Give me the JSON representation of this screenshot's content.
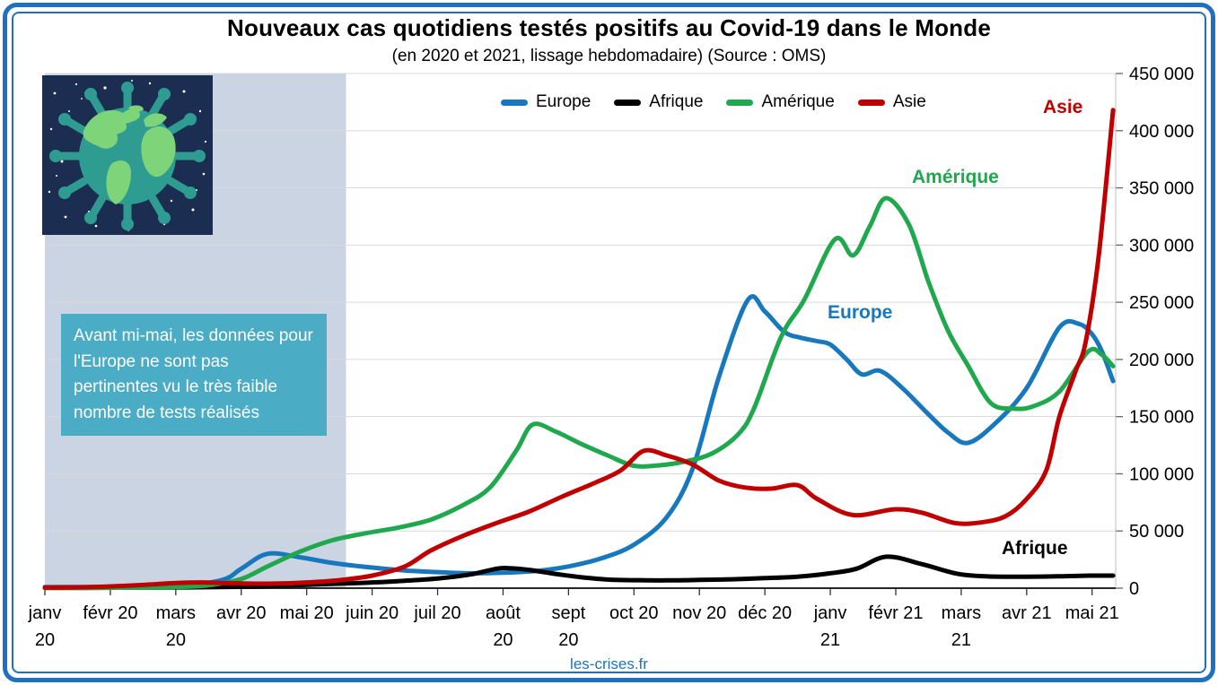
{
  "page": {
    "background": "#ffffff",
    "frame_color": "#2170c0"
  },
  "header": {
    "title": "Nouveaux cas quotidiens testés positifs au Covid-19 dans le Monde",
    "subtitle": "(en 2020 et 2021, lissage hebdomadaire) (Source : OMS)"
  },
  "annotation": {
    "text": "Avant mi-mai, les données pour l'Europe ne sont pas pertinentes vu le très faible nombre de tests réalisés",
    "bg_color": "#4bacc6",
    "text_color": "#ffffff"
  },
  "footer": {
    "site_label": "les-crises.fr",
    "color": "#1e73b5"
  },
  "icons": {
    "virus_globe": "virus-globe-illustration"
  },
  "chart_data": {
    "type": "line",
    "title": "Nouveaux cas quotidiens testés positifs au Covid-19 dans le Monde",
    "subtitle": "(en 2020 et 2021, lissage hebdomadaire)",
    "source": "OMS",
    "grid": true,
    "legend_position": "top-center",
    "x_axis": {
      "unit": "mois (0 = janvier 2020)",
      "x_max_month": 16.36,
      "labels": [
        {
          "l1": "janv",
          "l2": "20"
        },
        {
          "l1": "févr 20"
        },
        {
          "l1": "mars",
          "l2": "20"
        },
        {
          "l1": "avr 20"
        },
        {
          "l1": "mai 20"
        },
        {
          "l1": "juin 20"
        },
        {
          "l1": "juil 20"
        },
        {
          "l1": "août",
          "l2": "20"
        },
        {
          "l1": "sept",
          "l2": "20"
        },
        {
          "l1": "oct 20"
        },
        {
          "l1": "nov 20"
        },
        {
          "l1": "déc 20"
        },
        {
          "l1": "janv",
          "l2": "21"
        },
        {
          "l1": "févr 21"
        },
        {
          "l1": "mars",
          "l2": "21"
        },
        {
          "l1": "avr 21"
        },
        {
          "l1": "mai 21"
        }
      ]
    },
    "y_axis": {
      "min": 0,
      "max": 450000,
      "step": 50000,
      "side": "right",
      "tick_labels": [
        "0",
        "50 000",
        "100 000",
        "150 000",
        "200 000",
        "250 000",
        "300 000",
        "350 000",
        "400 000",
        "450 000"
      ]
    },
    "shaded_region": {
      "from_month": 0,
      "to_month": 4.6,
      "color": "#cbd4e2",
      "meaning": "période avant mi-mai 2020 (données Europe non pertinentes)"
    },
    "series": [
      {
        "name": "Europe",
        "color": "#1878be",
        "points": [
          [
            0,
            1000
          ],
          [
            1,
            1000
          ],
          [
            2,
            2000
          ],
          [
            2.7,
            7000
          ],
          [
            3.0,
            17000
          ],
          [
            3.4,
            30000
          ],
          [
            3.9,
            27000
          ],
          [
            4.4,
            22000
          ],
          [
            5,
            18000
          ],
          [
            5.5,
            15500
          ],
          [
            6,
            14000
          ],
          [
            6.5,
            13000
          ],
          [
            7,
            13500
          ],
          [
            7.5,
            15000
          ],
          [
            8,
            19000
          ],
          [
            8.5,
            26000
          ],
          [
            9,
            38000
          ],
          [
            9.5,
            62000
          ],
          [
            9.9,
            105000
          ],
          [
            10.3,
            185000
          ],
          [
            10.74,
            252000
          ],
          [
            11.0,
            242000
          ],
          [
            11.3,
            224000
          ],
          [
            11.55,
            219000
          ],
          [
            11.8,
            216000
          ],
          [
            12.0,
            213000
          ],
          [
            12.25,
            200000
          ],
          [
            12.48,
            187000
          ],
          [
            12.76,
            190000
          ],
          [
            13.1,
            175000
          ],
          [
            13.5,
            152000
          ],
          [
            13.8,
            136000
          ],
          [
            14.1,
            127000
          ],
          [
            14.5,
            143000
          ],
          [
            15,
            175000
          ],
          [
            15.5,
            228000
          ],
          [
            15.8,
            231000
          ],
          [
            16.0,
            222000
          ],
          [
            16.15,
            207000
          ],
          [
            16.32,
            181000
          ]
        ]
      },
      {
        "name": "Afrique",
        "color": "#000000",
        "points": [
          [
            0,
            300
          ],
          [
            1,
            400
          ],
          [
            2,
            600
          ],
          [
            3,
            1200
          ],
          [
            3.5,
            2000
          ],
          [
            4,
            3000
          ],
          [
            4.5,
            4000
          ],
          [
            5,
            5000
          ],
          [
            5.5,
            6500
          ],
          [
            6,
            8500
          ],
          [
            6.5,
            12000
          ],
          [
            6.9,
            17000
          ],
          [
            7.1,
            17500
          ],
          [
            7.4,
            16000
          ],
          [
            7.8,
            12500
          ],
          [
            8.2,
            9500
          ],
          [
            8.6,
            7500
          ],
          [
            9,
            7000
          ],
          [
            9.5,
            6800
          ],
          [
            10,
            7200
          ],
          [
            10.5,
            7800
          ],
          [
            11,
            8800
          ],
          [
            11.5,
            10000
          ],
          [
            12,
            13000
          ],
          [
            12.4,
            17000
          ],
          [
            12.86,
            27500
          ],
          [
            13.4,
            21000
          ],
          [
            13.95,
            12500
          ],
          [
            14.4,
            10300
          ],
          [
            15,
            10000
          ],
          [
            15.6,
            10500
          ],
          [
            16,
            11000
          ],
          [
            16.32,
            11000
          ]
        ]
      },
      {
        "name": "Amérique",
        "color": "#1fa84e",
        "points": [
          [
            0,
            200
          ],
          [
            1,
            300
          ],
          [
            2,
            1000
          ],
          [
            2.5,
            2500
          ],
          [
            3,
            8000
          ],
          [
            3.4,
            19000
          ],
          [
            3.9,
            32000
          ],
          [
            4.4,
            42000
          ],
          [
            4.9,
            48000
          ],
          [
            5.4,
            53000
          ],
          [
            5.9,
            60000
          ],
          [
            6.4,
            73000
          ],
          [
            6.8,
            88000
          ],
          [
            7.2,
            120000
          ],
          [
            7.45,
            143000
          ],
          [
            7.8,
            137000
          ],
          [
            8.2,
            126000
          ],
          [
            8.6,
            116000
          ],
          [
            9.0,
            107000
          ],
          [
            9.4,
            107500
          ],
          [
            9.8,
            111000
          ],
          [
            10.2,
            118000
          ],
          [
            10.6,
            135000
          ],
          [
            10.84,
            158000
          ],
          [
            11.25,
            220000
          ],
          [
            11.6,
            252000
          ],
          [
            12.07,
            305000
          ],
          [
            12.35,
            291000
          ],
          [
            12.6,
            316000
          ],
          [
            12.85,
            341000
          ],
          [
            13.2,
            318000
          ],
          [
            13.5,
            268000
          ],
          [
            13.8,
            225000
          ],
          [
            14.1,
            195000
          ],
          [
            14.45,
            162000
          ],
          [
            14.8,
            157000
          ],
          [
            15.1,
            159000
          ],
          [
            15.5,
            172000
          ],
          [
            15.94,
            207000
          ],
          [
            16.15,
            204000
          ],
          [
            16.32,
            194000
          ]
        ]
      },
      {
        "name": "Asie",
        "color": "#c00000",
        "points": [
          [
            0,
            500
          ],
          [
            0.7,
            1000
          ],
          [
            1.4,
            2500
          ],
          [
            2,
            4500
          ],
          [
            2.4,
            5000
          ],
          [
            2.9,
            4200
          ],
          [
            3.5,
            4000
          ],
          [
            4,
            5000
          ],
          [
            4.5,
            7000
          ],
          [
            5,
            11000
          ],
          [
            5.5,
            19000
          ],
          [
            5.9,
            33000
          ],
          [
            6.4,
            46000
          ],
          [
            6.9,
            57000
          ],
          [
            7.4,
            67000
          ],
          [
            7.9,
            80000
          ],
          [
            8.4,
            92000
          ],
          [
            8.8,
            103000
          ],
          [
            9.15,
            120000
          ],
          [
            9.5,
            116000
          ],
          [
            9.9,
            108000
          ],
          [
            10.3,
            94000
          ],
          [
            10.7,
            88000
          ],
          [
            11.1,
            87000
          ],
          [
            11.5,
            90000
          ],
          [
            11.8,
            78000
          ],
          [
            12.34,
            64000
          ],
          [
            12.99,
            69000
          ],
          [
            13.4,
            66000
          ],
          [
            13.9,
            57000
          ],
          [
            14.3,
            57500
          ],
          [
            14.68,
            63000
          ],
          [
            15.0,
            78000
          ],
          [
            15.3,
            103000
          ],
          [
            15.5,
            150000
          ],
          [
            15.75,
            190000
          ],
          [
            15.9,
            215000
          ],
          [
            16.1,
            290000
          ],
          [
            16.32,
            418000
          ]
        ]
      }
    ],
    "series_inline_labels": [
      {
        "text": "Asie",
        "color": "#c00000"
      },
      {
        "text": "Amérique",
        "color": "#1fa84e"
      },
      {
        "text": "Europe",
        "color": "#1878be"
      },
      {
        "text": "Afrique",
        "color": "#000000"
      }
    ]
  }
}
